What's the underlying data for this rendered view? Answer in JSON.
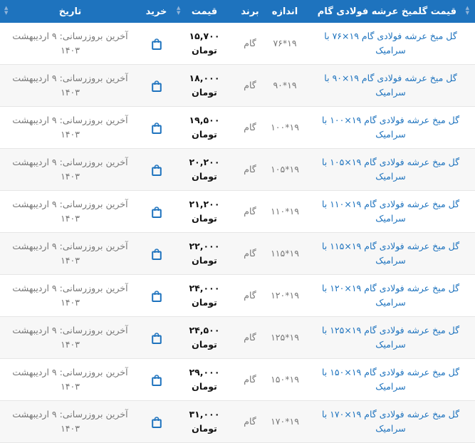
{
  "headers": {
    "name": "قیمت گلمیخ عرشه فولادی گام",
    "size": "اندازه",
    "brand": "برند",
    "price": "قیمت",
    "buy": "خرید",
    "date": "تاریخ"
  },
  "accent": "#1e73be",
  "rows": [
    {
      "name": "گل میخ عرشه فولادی گام ۱۹×۷۶ با سرامیک",
      "size": "۱۹*۷۶",
      "brand": "گام",
      "price": "۱۵,۷۰۰ تومان",
      "date": "آخرین بروزرسانی: ۹ اردیبهشت ۱۴۰۳"
    },
    {
      "name": "گل میخ عرشه فولادی گام ۱۹×۹۰ با سرامیک",
      "size": "۱۹*۹۰",
      "brand": "گام",
      "price": "۱۸,۰۰۰ تومان",
      "date": "آخرین بروزرسانی: ۹ اردیبهشت ۱۴۰۳"
    },
    {
      "name": "گل میخ عرشه فولادی گام ۱۹×۱۰۰ با سرامیک",
      "size": "۱۹*۱۰۰",
      "brand": "گام",
      "price": "۱۹,۵۰۰ تومان",
      "date": "آخرین بروزرسانی: ۹ اردیبهشت ۱۴۰۳"
    },
    {
      "name": "گل میخ عرشه فولادی گام ۱۹×۱۰۵ با سرامیک",
      "size": "۱۹*۱۰۵",
      "brand": "گام",
      "price": "۲۰,۲۰۰ تومان",
      "date": "آخرین بروزرسانی: ۹ اردیبهشت ۱۴۰۳"
    },
    {
      "name": "گل میخ عرشه فولادی گام ۱۹×۱۱۰ با سرامیک",
      "size": "۱۹*۱۱۰",
      "brand": "گام",
      "price": "۲۱,۲۰۰ تومان",
      "date": "آخرین بروزرسانی: ۹ اردیبهشت ۱۴۰۳"
    },
    {
      "name": "گل میخ عرشه فولادی گام ۱۹×۱۱۵ با سرامیک",
      "size": "۱۹*۱۱۵",
      "brand": "گام",
      "price": "۲۲,۰۰۰ تومان",
      "date": "آخرین بروزرسانی: ۹ اردیبهشت ۱۴۰۳"
    },
    {
      "name": "گل میخ عرشه فولادی گام ۱۹×۱۲۰ با سرامیک",
      "size": "۱۹*۱۲۰",
      "brand": "گام",
      "price": "۲۴,۰۰۰ تومان",
      "date": "آخرین بروزرسانی: ۹ اردیبهشت ۱۴۰۳"
    },
    {
      "name": "گل میخ عرشه فولادی گام ۱۹×۱۲۵ با سرامیک",
      "size": "۱۹*۱۲۵",
      "brand": "گام",
      "price": "۲۴,۵۰۰ تومان",
      "date": "آخرین بروزرسانی: ۹ اردیبهشت ۱۴۰۳"
    },
    {
      "name": "گل میخ عرشه فولادی گام ۱۹×۱۵۰ با سرامیک",
      "size": "۱۹*۱۵۰",
      "brand": "گام",
      "price": "۲۹,۰۰۰ تومان",
      "date": "آخرین بروزرسانی: ۹ اردیبهشت ۱۴۰۳"
    },
    {
      "name": "گل میخ عرشه فولادی گام ۱۹×۱۷۰ با سرامیک",
      "size": "۱۹*۱۷۰",
      "brand": "گام",
      "price": "۳۱,۰۰۰ تومان",
      "date": "آخرین بروزرسانی: ۹ اردیبهشت ۱۴۰۳"
    }
  ]
}
